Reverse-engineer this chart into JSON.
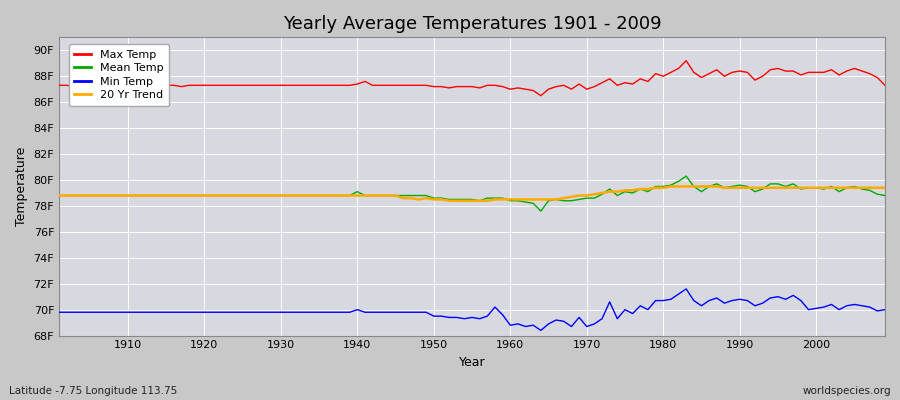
{
  "title": "Yearly Average Temperatures 1901 - 2009",
  "xlabel": "Year",
  "ylabel": "Temperature",
  "footnote_left": "Latitude -7.75 Longitude 113.75",
  "footnote_right": "worldspecies.org",
  "fig_bg_color": "#c8c8c8",
  "plot_bg_color": "#d8d8e0",
  "ylim": [
    68,
    91
  ],
  "yticks": [
    68,
    70,
    72,
    74,
    76,
    78,
    80,
    82,
    84,
    86,
    88,
    90
  ],
  "ytick_labels": [
    "68F",
    "70F",
    "72F",
    "74F",
    "76F",
    "78F",
    "80F",
    "82F",
    "84F",
    "86F",
    "88F",
    "90F"
  ],
  "xlim": [
    1901,
    2009
  ],
  "xticks": [
    1910,
    1920,
    1930,
    1940,
    1950,
    1960,
    1970,
    1980,
    1990,
    2000
  ],
  "line_colors": {
    "max": "#ff0000",
    "mean": "#00aa00",
    "min": "#0000ff",
    "trend": "#ffaa00"
  },
  "legend_labels": [
    "Max Temp",
    "Mean Temp",
    "Min Temp",
    "20 Yr Trend"
  ],
  "years": [
    1901,
    1902,
    1903,
    1904,
    1905,
    1906,
    1907,
    1908,
    1909,
    1910,
    1911,
    1912,
    1913,
    1914,
    1915,
    1916,
    1917,
    1918,
    1919,
    1920,
    1921,
    1922,
    1923,
    1924,
    1925,
    1926,
    1927,
    1928,
    1929,
    1930,
    1931,
    1932,
    1933,
    1934,
    1935,
    1936,
    1937,
    1938,
    1939,
    1940,
    1941,
    1942,
    1943,
    1944,
    1945,
    1946,
    1947,
    1948,
    1949,
    1950,
    1951,
    1952,
    1953,
    1954,
    1955,
    1956,
    1957,
    1958,
    1959,
    1960,
    1961,
    1962,
    1963,
    1964,
    1965,
    1966,
    1967,
    1968,
    1969,
    1970,
    1971,
    1972,
    1973,
    1974,
    1975,
    1976,
    1977,
    1978,
    1979,
    1980,
    1981,
    1982,
    1983,
    1984,
    1985,
    1986,
    1987,
    1988,
    1989,
    1990,
    1991,
    1992,
    1993,
    1994,
    1995,
    1996,
    1997,
    1998,
    1999,
    2000,
    2001,
    2002,
    2003,
    2004,
    2005,
    2006,
    2007,
    2008,
    2009
  ],
  "max_temp": [
    87.3,
    87.3,
    87.2,
    87.3,
    87.3,
    87.2,
    87.2,
    87.2,
    87.2,
    87.3,
    87.2,
    87.3,
    87.3,
    87.2,
    87.3,
    87.3,
    87.2,
    87.3,
    87.3,
    87.3,
    87.3,
    87.3,
    87.3,
    87.3,
    87.3,
    87.3,
    87.3,
    87.3,
    87.3,
    87.3,
    87.3,
    87.3,
    87.3,
    87.3,
    87.3,
    87.3,
    87.3,
    87.3,
    87.3,
    87.4,
    87.6,
    87.3,
    87.3,
    87.3,
    87.3,
    87.3,
    87.3,
    87.3,
    87.3,
    87.2,
    87.2,
    87.1,
    87.2,
    87.2,
    87.2,
    87.1,
    87.3,
    87.3,
    87.2,
    87.0,
    87.1,
    87.0,
    86.9,
    86.5,
    87.0,
    87.2,
    87.3,
    87.0,
    87.4,
    87.0,
    87.2,
    87.5,
    87.8,
    87.3,
    87.5,
    87.4,
    87.8,
    87.6,
    88.2,
    88.0,
    88.3,
    88.6,
    89.2,
    88.3,
    87.9,
    88.2,
    88.5,
    88.0,
    88.3,
    88.4,
    88.3,
    87.7,
    88.0,
    88.5,
    88.6,
    88.4,
    88.4,
    88.1,
    88.3,
    88.3,
    88.3,
    88.5,
    88.1,
    88.4,
    88.6,
    88.4,
    88.2,
    87.9,
    87.3
  ],
  "mean_temp": [
    78.8,
    78.8,
    78.8,
    78.8,
    78.8,
    78.8,
    78.8,
    78.8,
    78.8,
    78.8,
    78.8,
    78.8,
    78.8,
    78.8,
    78.8,
    78.8,
    78.8,
    78.8,
    78.8,
    78.8,
    78.8,
    78.8,
    78.8,
    78.8,
    78.8,
    78.8,
    78.8,
    78.8,
    78.8,
    78.8,
    78.8,
    78.8,
    78.8,
    78.8,
    78.8,
    78.8,
    78.8,
    78.8,
    78.8,
    79.1,
    78.8,
    78.8,
    78.8,
    78.8,
    78.8,
    78.8,
    78.8,
    78.8,
    78.8,
    78.6,
    78.6,
    78.5,
    78.5,
    78.5,
    78.5,
    78.4,
    78.6,
    78.6,
    78.6,
    78.4,
    78.4,
    78.3,
    78.2,
    77.6,
    78.4,
    78.5,
    78.4,
    78.4,
    78.5,
    78.6,
    78.6,
    78.9,
    79.3,
    78.8,
    79.1,
    79.0,
    79.3,
    79.1,
    79.5,
    79.5,
    79.6,
    79.9,
    80.3,
    79.5,
    79.1,
    79.5,
    79.7,
    79.4,
    79.5,
    79.6,
    79.5,
    79.1,
    79.3,
    79.7,
    79.7,
    79.5,
    79.7,
    79.3,
    79.4,
    79.4,
    79.3,
    79.5,
    79.1,
    79.4,
    79.5,
    79.3,
    79.2,
    78.9,
    78.8
  ],
  "min_temp": [
    69.8,
    69.8,
    69.8,
    69.8,
    69.8,
    69.8,
    69.8,
    69.8,
    69.8,
    69.8,
    69.8,
    69.8,
    69.8,
    69.8,
    69.8,
    69.8,
    69.8,
    69.8,
    69.8,
    69.8,
    69.8,
    69.8,
    69.8,
    69.8,
    69.8,
    69.8,
    69.8,
    69.8,
    69.8,
    69.8,
    69.8,
    69.8,
    69.8,
    69.8,
    69.8,
    69.8,
    69.8,
    69.8,
    69.8,
    70.0,
    69.8,
    69.8,
    69.8,
    69.8,
    69.8,
    69.8,
    69.8,
    69.8,
    69.8,
    69.5,
    69.5,
    69.4,
    69.4,
    69.3,
    69.4,
    69.3,
    69.5,
    70.2,
    69.6,
    68.8,
    68.9,
    68.7,
    68.8,
    68.4,
    68.9,
    69.2,
    69.1,
    68.7,
    69.4,
    68.7,
    68.9,
    69.3,
    70.6,
    69.3,
    70.0,
    69.7,
    70.3,
    70.0,
    70.7,
    70.7,
    70.8,
    71.2,
    71.6,
    70.7,
    70.3,
    70.7,
    70.9,
    70.5,
    70.7,
    70.8,
    70.7,
    70.3,
    70.5,
    70.9,
    71.0,
    70.8,
    71.1,
    70.7,
    70.0,
    70.1,
    70.2,
    70.4,
    70.0,
    70.3,
    70.4,
    70.3,
    70.2,
    69.9,
    70.0
  ],
  "trend": [
    78.8,
    78.8,
    78.8,
    78.8,
    78.8,
    78.8,
    78.8,
    78.8,
    78.8,
    78.8,
    78.8,
    78.8,
    78.8,
    78.8,
    78.8,
    78.8,
    78.8,
    78.8,
    78.8,
    78.8,
    78.8,
    78.8,
    78.8,
    78.8,
    78.8,
    78.8,
    78.8,
    78.8,
    78.8,
    78.8,
    78.8,
    78.8,
    78.8,
    78.8,
    78.8,
    78.8,
    78.8,
    78.8,
    78.8,
    78.8,
    78.8,
    78.8,
    78.8,
    78.8,
    78.8,
    78.6,
    78.6,
    78.5,
    78.6,
    78.5,
    78.5,
    78.4,
    78.4,
    78.4,
    78.4,
    78.4,
    78.4,
    78.5,
    78.5,
    78.5,
    78.5,
    78.5,
    78.5,
    78.5,
    78.5,
    78.5,
    78.6,
    78.7,
    78.8,
    78.8,
    78.9,
    79.0,
    79.1,
    79.1,
    79.2,
    79.2,
    79.3,
    79.3,
    79.4,
    79.4,
    79.5,
    79.5,
    79.5,
    79.5,
    79.5,
    79.5,
    79.5,
    79.4,
    79.4,
    79.4,
    79.4,
    79.4,
    79.4,
    79.4,
    79.4,
    79.4,
    79.4,
    79.4,
    79.4,
    79.4,
    79.4,
    79.4,
    79.4,
    79.4,
    79.4,
    79.4,
    79.4,
    79.4,
    79.4
  ]
}
